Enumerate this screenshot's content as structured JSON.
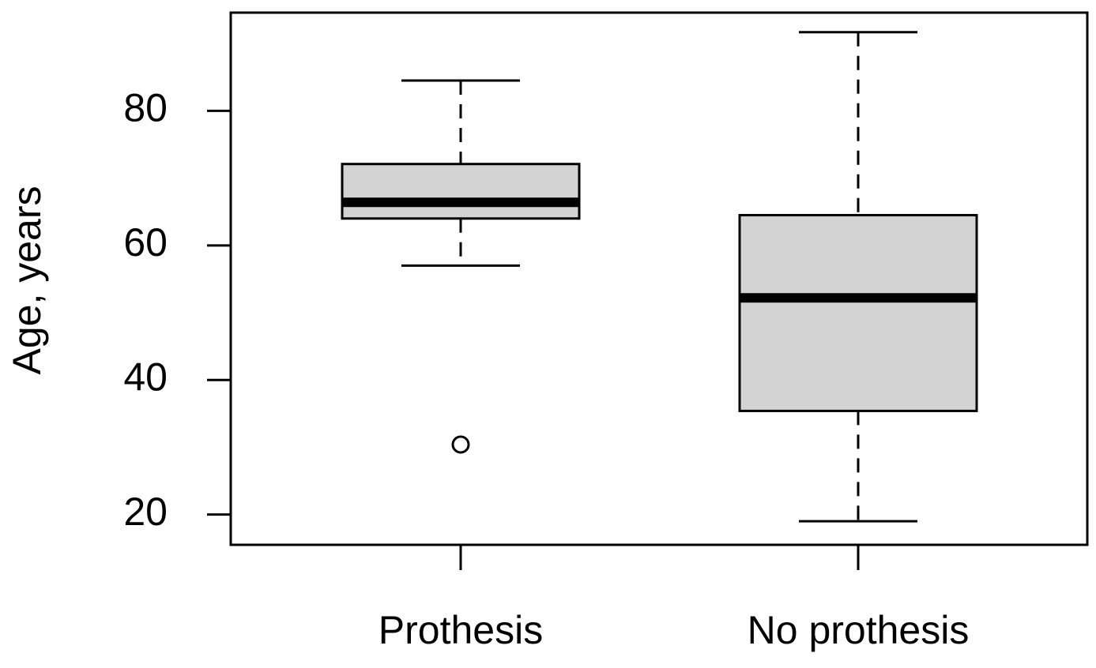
{
  "chart_data": {
    "type": "box",
    "y_label": "Age, years",
    "categories": [
      "Prothesis",
      "No prothesis"
    ],
    "color": "#d3d3d3",
    "boxes": [
      {
        "min": 57.0,
        "q1": 64.0,
        "median": 66.4,
        "q3": 72.1,
        "max": 84.5,
        "outliers": [
          30.4
        ]
      },
      {
        "min": 19.0,
        "q1": 35.4,
        "median": 52.2,
        "q3": 64.5,
        "max": 91.7,
        "outliers": []
      }
    ],
    "ylim": [
      15.5,
      94.6
    ],
    "yticks": [
      20,
      40,
      60,
      80
    ]
  }
}
